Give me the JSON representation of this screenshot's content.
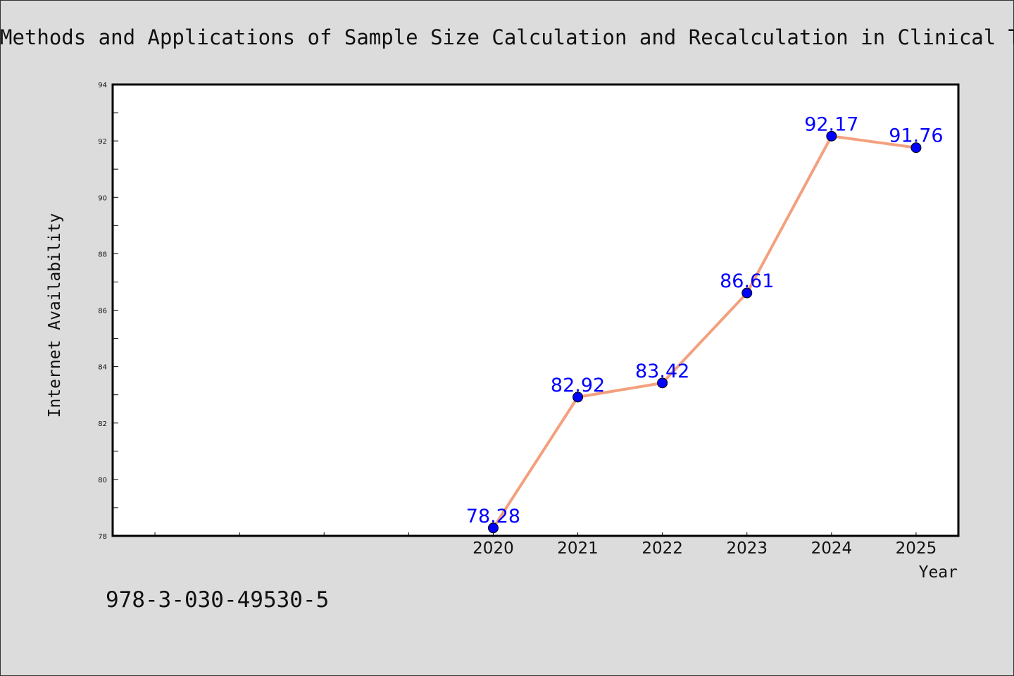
{
  "header": {
    "title": "Methods and Applications of Sample Size Calculation and Recalculation in Clinical Trials"
  },
  "footer": {
    "isbn": "978-3-030-49530-5"
  },
  "chart_data": {
    "type": "line",
    "title": "Methods and Applications of Sample Size Calculation and Recalculation in Clinical Trials",
    "xlabel": "Year",
    "ylabel": "Internet Availability",
    "x": [
      2020,
      2021,
      2022,
      2023,
      2024,
      2025
    ],
    "values": [
      78.28,
      82.92,
      83.42,
      86.61,
      92.17,
      91.76
    ],
    "data_labels": [
      "78.28",
      "82.92",
      "83.42",
      "86.61",
      "92.17",
      "91.76"
    ],
    "x_tick_labels": [
      "2020",
      "2021",
      "2022",
      "2023",
      "2024",
      "2025"
    ],
    "ylim": [
      78,
      94
    ],
    "xlim": [
      2015.5,
      2025.5
    ],
    "y_ticks": [
      78,
      80,
      82,
      84,
      86,
      88,
      90,
      92,
      94
    ],
    "grid": false,
    "line_color": "#f4a07e",
    "marker_color": "#0000ff",
    "label_color": "#0000ff",
    "plot_background": "#ffffff",
    "figure_background": "#dcdcdc"
  }
}
